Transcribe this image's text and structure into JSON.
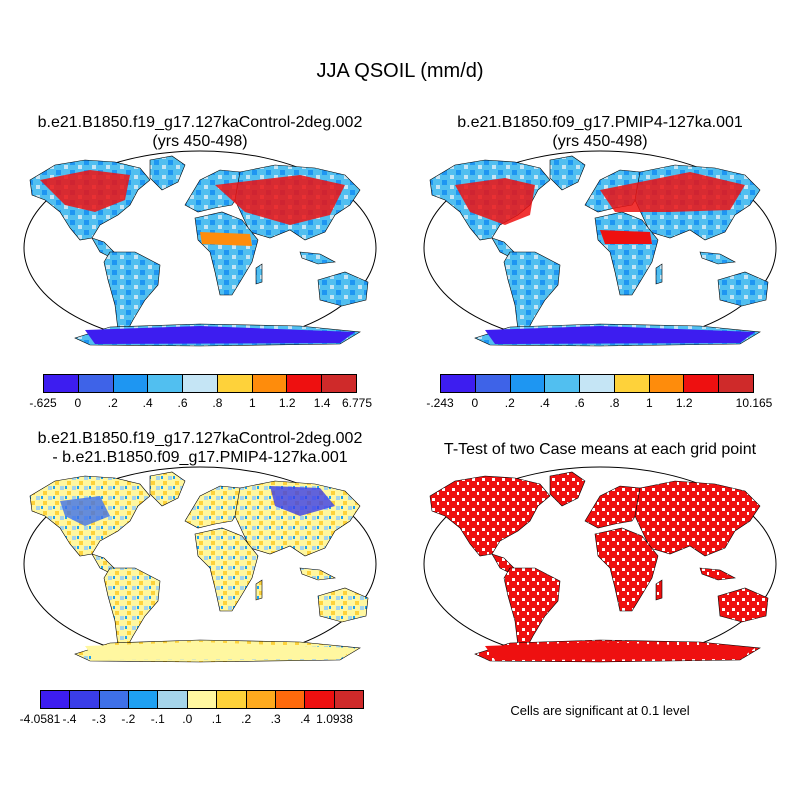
{
  "title": "JJA QSOIL (mm/d)",
  "panels": [
    {
      "title_lines": [
        "b.e21.B1850.f19_g17.127kaControl-2deg.002",
        "(yrs 450-498)"
      ],
      "colorbar": {
        "colors": [
          "#3d1df0",
          "#3e63e8",
          "#1e96f2",
          "#51bff0",
          "#c5e5f5",
          "#fed23a",
          "#fe8c0c",
          "#ee1010",
          "#cf2a2a"
        ],
        "labels": [
          "-.625",
          "0",
          ".2",
          ".4",
          ".6",
          ".8",
          "1",
          "1.2",
          "1.4",
          "6.775"
        ]
      }
    },
    {
      "title_lines": [
        "b.e21.B1850.f09_g17.PMIP4-127ka.001",
        "(yrs 450-498)"
      ],
      "colorbar": {
        "colors": [
          "#3d1df0",
          "#3e63e8",
          "#1e96f2",
          "#51bff0",
          "#c5e5f5",
          "#fed23a",
          "#fe8c0c",
          "#ee1010",
          "#cf2a2a"
        ],
        "labels": [
          "-.243",
          "0",
          ".2",
          ".4",
          ".6",
          ".8",
          "1",
          "1.2",
          "",
          "10.165"
        ]
      }
    },
    {
      "title_lines": [
        "b.e21.B1850.f19_g17.127kaControl-2deg.002",
        "- b.e21.B1850.f09_g17.PMIP4-127ka.001"
      ],
      "colorbar": {
        "colors": [
          "#3d1df0",
          "#3a3de8",
          "#3e70e8",
          "#1ea0f2",
          "#a5d4ea",
          "#fff7a0",
          "#fed23a",
          "#feaa1e",
          "#fe6a0c",
          "#ee1010",
          "#cf2a2a"
        ],
        "labels": [
          "-4.0581",
          "-.4",
          "-.3",
          "-.2",
          "-.1",
          ".0",
          ".1",
          ".2",
          ".3",
          ".4",
          "1.0938"
        ]
      }
    },
    {
      "title_lines": [
        "T-Test of two Case means at each grid point"
      ],
      "note": "Cells are significant at 0.1 level"
    }
  ]
}
